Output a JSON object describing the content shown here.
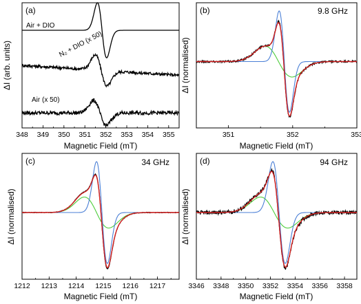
{
  "colors": {
    "experimental": "#000000",
    "fit_total": "#d62020",
    "component_blue": "#4a7fd6",
    "component_green": "#4ccc3a"
  },
  "chart_data": [
    {
      "panel": "(a)",
      "type": "line",
      "xlabel": "Magnetic Field (mT)",
      "ylabel": "ΔI (arb. units)",
      "xlim": [
        348,
        355.5
      ],
      "xticks": [
        348,
        349,
        350,
        351,
        352,
        353,
        354,
        355
      ],
      "series": [
        {
          "name": "Air + DIO",
          "color": "experimental",
          "center": 351.82,
          "width": 0.22,
          "amplitude": 1.0,
          "offset": 0.78,
          "noise": 0.0
        },
        {
          "name": "N2 + DIO (x 50)",
          "color": "experimental",
          "center": 351.78,
          "width": 0.28,
          "amplitude": 0.55,
          "offset": 0.42,
          "noise": 0.025
        },
        {
          "name": "Air (x 50)",
          "color": "experimental",
          "center": 351.72,
          "width": 0.3,
          "amplitude": 0.45,
          "offset": 0.12,
          "noise": 0.03
        }
      ],
      "labels": [
        "Air + DIO",
        "N₂ + DIO (x 50)",
        "Air (x 50)"
      ]
    },
    {
      "panel": "(b)",
      "frequency": "9.8 GHz",
      "type": "line",
      "xlabel": "Magnetic Field (mT)",
      "ylabel": "ΔI (normalised)",
      "xlim": [
        350.5,
        353.0
      ],
      "xticks": [
        351,
        352,
        353
      ],
      "components": {
        "blue_center": 351.87,
        "blue_width": 0.08,
        "green_center": 351.78,
        "green_width": 0.21,
        "green_amp": 0.28,
        "noise": 0.018
      }
    },
    {
      "panel": "(c)",
      "frequency": "34 GHz",
      "type": "line",
      "xlabel": "Magnetic Field (mT)",
      "ylabel": "ΔI (normalised)",
      "xlim": [
        1212,
        1217.8
      ],
      "xticks": [
        1212,
        1213,
        1214,
        1215,
        1216,
        1217
      ],
      "components": {
        "blue_center": 1214.95,
        "blue_width": 0.2,
        "green_center": 1214.75,
        "green_width": 0.45,
        "green_amp": 0.35,
        "noise": 0.006
      }
    },
    {
      "panel": "(d)",
      "frequency": "94 GHz",
      "type": "line",
      "xlabel": "Magnetic Field (mT)",
      "ylabel": "ΔI (normalised)",
      "xlim": [
        3346,
        3359
      ],
      "xticks": [
        3346,
        3348,
        3350,
        3352,
        3354,
        3356,
        3358
      ],
      "components": {
        "blue_center": 3352.7,
        "blue_width": 0.5,
        "green_center": 3352.3,
        "green_width": 1.1,
        "green_amp": 0.33,
        "noise": 0.035
      }
    }
  ]
}
